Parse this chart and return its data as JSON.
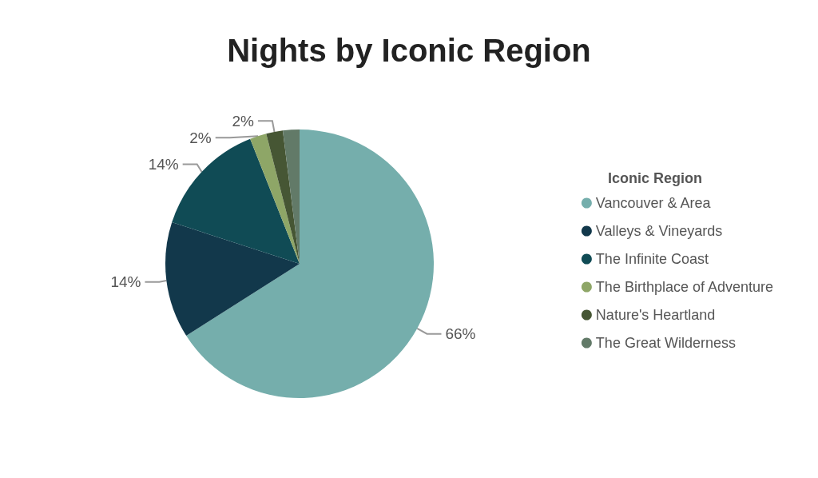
{
  "chart_data": {
    "type": "pie",
    "title": "Nights by Iconic Region",
    "legend_title": "Iconic Region",
    "legend": "right",
    "categories": [
      "Vancouver & Area",
      "Valleys & Vineyards",
      "The Infinite Coast",
      "The Birthplace of Adventure",
      "Nature's Heartland",
      "The Great Wilderness"
    ],
    "values": [
      66,
      14,
      14,
      2,
      2,
      2
    ],
    "value_labels": [
      "66%",
      "14%",
      "14%",
      "2%",
      "2%",
      null
    ],
    "colors": [
      "#75aeac",
      "#12384b",
      "#104b55",
      "#8ea667",
      "#465634",
      "#627a68"
    ]
  }
}
